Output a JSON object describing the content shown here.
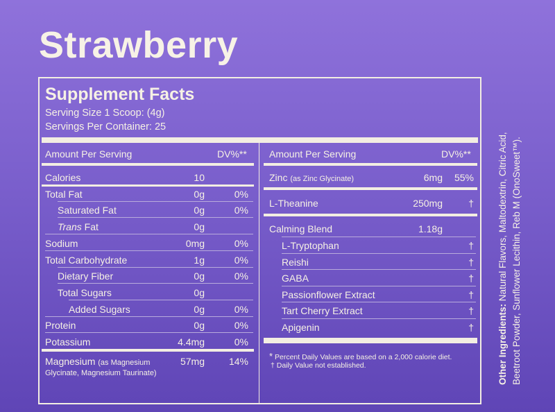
{
  "product": {
    "name": "Strawberry"
  },
  "panel": {
    "title": "Supplement Facts",
    "serving_size": "Serving Size 1 Scoop: (4g)",
    "servings_per_container": "Servings Per Container: 25"
  },
  "left": {
    "header_amount": "Amount Per Serving",
    "header_dv": "DV%**",
    "rows": [
      {
        "label": "Calories",
        "amount": "10",
        "dv": ""
      },
      {
        "label": "Total Fat",
        "amount": "0g",
        "dv": "0%"
      },
      {
        "label": "Saturated Fat",
        "amount": "0g",
        "dv": "0%"
      },
      {
        "label": "Trans Fat",
        "amount": "0g",
        "dv": ""
      },
      {
        "label": "Sodium",
        "amount": "0mg",
        "dv": "0%"
      },
      {
        "label": "Total Carbohydrate",
        "amount": "1g",
        "dv": "0%"
      },
      {
        "label": "Dietary Fiber",
        "amount": "0g",
        "dv": "0%"
      },
      {
        "label": "Total Sugars",
        "amount": "0g",
        "dv": ""
      },
      {
        "label": "Added Sugars",
        "amount": "0g",
        "dv": "0%"
      },
      {
        "label": "Protein",
        "amount": "0g",
        "dv": "0%"
      },
      {
        "label": "Potassium",
        "amount": "4.4mg",
        "dv": "0%"
      }
    ],
    "magnesium": {
      "label": "Magnesium",
      "note": "(as Magnesium",
      "note2": "Glycinate, Magnesium Taurinate)",
      "amount": "57mg",
      "dv": "14%"
    }
  },
  "right": {
    "header_amount": "Amount Per Serving",
    "header_dv": "DV%**",
    "zinc": {
      "label": "Zinc",
      "note": "(as Zinc Glycinate)",
      "amount": "6mg",
      "dv": "55%"
    },
    "theanine": {
      "label": "L-Theanine",
      "amount": "250mg",
      "dv": "†"
    },
    "calming": {
      "label": "Calming Blend",
      "amount": "1.18g"
    },
    "blend_items": [
      {
        "label": "L-Tryptophan",
        "dv": "†"
      },
      {
        "label": "Reishi",
        "dv": "†"
      },
      {
        "label": "GABA",
        "dv": "†"
      },
      {
        "label": "Passionflower Extract",
        "dv": "†"
      },
      {
        "label": "Tart Cherry Extract",
        "dv": "†"
      },
      {
        "label": "Apigenin",
        "dv": "†"
      }
    ],
    "footnote1_mark": "*",
    "footnote1": "Percent Daily Values are based on a 2,000 calorie diet.",
    "footnote2_mark": "†",
    "footnote2": "Daily Value not established."
  },
  "ingredients": {
    "label": "Other Ingredients:",
    "text": "Natural Flavors, Maltodextrin, Citric Acid, Beetroot Powder, Sunflower Lecithin, Reb M (OnoSweet™)."
  }
}
